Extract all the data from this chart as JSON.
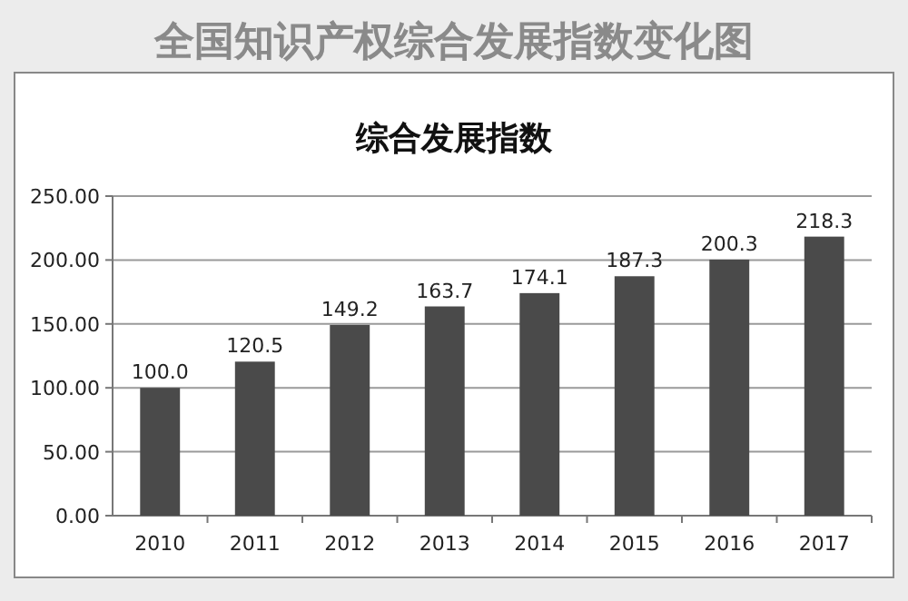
{
  "chart_data": {
    "type": "bar",
    "title": "全国知识产权综合发展指数变化图",
    "subtitle": "综合发展指数",
    "categories": [
      "2010",
      "2011",
      "2012",
      "2013",
      "2014",
      "2015",
      "2016",
      "2017"
    ],
    "values": [
      100.0,
      120.5,
      149.2,
      163.7,
      174.1,
      187.3,
      200.3,
      218.3
    ],
    "color": "#4a4a4a",
    "ylim": [
      0,
      250
    ],
    "yticks": [
      {
        "value": 0,
        "label": "0.00"
      },
      {
        "value": 50,
        "label": "50.00"
      },
      {
        "value": 100,
        "label": "100.00"
      },
      {
        "value": 150,
        "label": "150.00"
      },
      {
        "value": 200,
        "label": "200.00"
      },
      {
        "value": 250,
        "label": "250.00"
      }
    ],
    "grid": "y",
    "value_labels": [
      "100.0",
      "120.5",
      "149.2",
      "163.7",
      "174.1",
      "187.3",
      "200.3",
      "218.3"
    ]
  }
}
